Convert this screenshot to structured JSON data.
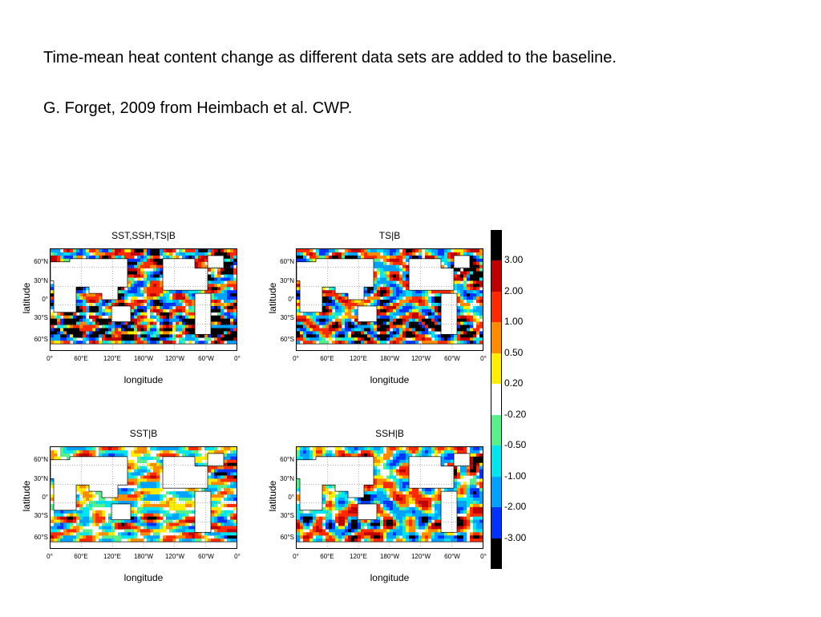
{
  "slide": {
    "caption_line1": "Time-mean heat content change as different data sets are added to the baseline.",
    "caption_line2": "G. Forget, 2009 from Heimbach et al. CWP."
  },
  "chart_data": [
    {
      "type": "heatmap",
      "title": "SST,SSH,TS|B",
      "xlabel": "longitude",
      "ylabel": "latitude",
      "xticks": [
        "0°",
        "60°E",
        "120°E",
        "180°W",
        "120°W",
        "60°W",
        "0°"
      ],
      "yticks": [
        "60°N",
        "30°N",
        "0°",
        "30°S",
        "60°S"
      ],
      "intensity": 1.0,
      "seed": 11
    },
    {
      "type": "heatmap",
      "title": "TS|B",
      "xlabel": "longitude",
      "ylabel": "latitude",
      "xticks": [
        "0°",
        "60°E",
        "120°E",
        "180°W",
        "120°W",
        "60°W",
        "0°"
      ],
      "yticks": [
        "60°N",
        "30°N",
        "0°",
        "30°S",
        "60°S"
      ],
      "intensity": 0.95,
      "seed": 23
    },
    {
      "type": "heatmap",
      "title": "SST|B",
      "xlabel": "longitude",
      "ylabel": "latitude",
      "xticks": [
        "0°",
        "60°E",
        "120°E",
        "180°W",
        "120°W",
        "60°W",
        "0°"
      ],
      "yticks": [
        "60°N",
        "30°N",
        "0°",
        "30°S",
        "60°S"
      ],
      "intensity": 0.55,
      "seed": 37
    },
    {
      "type": "heatmap",
      "title": "SSH|B",
      "xlabel": "longitude",
      "ylabel": "latitude",
      "xticks": [
        "0°",
        "60°E",
        "120°E",
        "180°W",
        "120°W",
        "60°W",
        "0°"
      ],
      "yticks": [
        "60°N",
        "30°N",
        "0°",
        "30°S",
        "60°S"
      ],
      "intensity": 0.8,
      "seed": 53
    }
  ],
  "colorbar": {
    "colors": [
      "#000000",
      "#c00000",
      "#ff2a00",
      "#ff8c00",
      "#ffee00",
      "#ffffff",
      "#58f08a",
      "#00e6f0",
      "#00a2ff",
      "#0033ff",
      "#000000"
    ],
    "labels": [
      "3.00",
      "2.00",
      "1.00",
      "0.50",
      "0.20",
      "-0.20",
      "-0.50",
      "-1.00",
      "-2.00",
      "-3.00"
    ]
  }
}
